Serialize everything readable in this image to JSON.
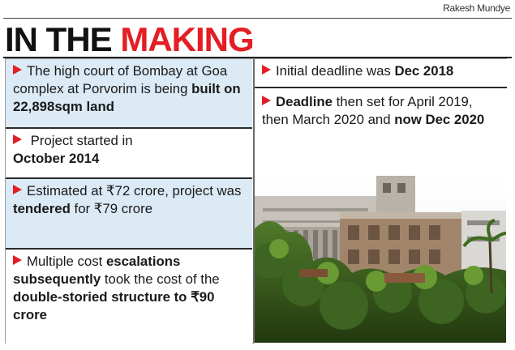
{
  "credit": "Rakesh Mundye",
  "headline": {
    "prefix": "IN THE ",
    "highlight": "MAKING"
  },
  "colors": {
    "accent": "#e31e24",
    "panel": "#dbeaf5",
    "rule": "#2b2b2b"
  },
  "left_facts": [
    {
      "parts": [
        "The high court of Bombay at Goa complex at Porvorim is being ",
        "built on 22,898sqm land"
      ]
    },
    {
      "parts": [
        " Project started in ",
        "October 2014"
      ]
    },
    {
      "parts": [
        "Estimated at ₹72 crore",
        ", project was ",
        "tendered",
        " for ₹79 crore"
      ]
    },
    {
      "parts": [
        "Multiple cost ",
        "escalations subsequently",
        " took the cost of the ",
        "double-storied structure to ₹90 crore"
      ]
    }
  ],
  "right_facts": [
    {
      "parts": [
        "Initial deadline was ",
        "Dec 2018"
      ]
    },
    {
      "parts": [
        "Deadline",
        " then set for April 2019, then March 2020 and ",
        "now Dec 2020"
      ]
    }
  ],
  "photo": {
    "subject": "building-under-construction-with-trees"
  }
}
